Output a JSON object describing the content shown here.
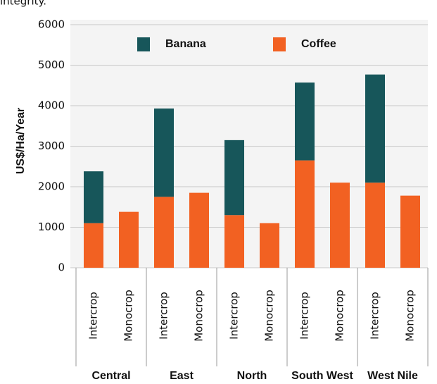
{
  "fragment": "integrity.",
  "chart_data": {
    "type": "stacked_bar",
    "y_label": "US$/Ha/Year",
    "categories": [
      "Intercrop",
      "Monocrop",
      "Intercrop",
      "Monocrop",
      "Intercrop",
      "Monocrop",
      "Intercrop",
      "Monocrop",
      "Intercrop",
      "Monocrop"
    ],
    "groups": [
      "Central",
      "East",
      "North",
      "South West",
      "West Nile"
    ],
    "series": [
      {
        "name": "Coffee",
        "color": "#f26122",
        "values": [
          1100,
          1380,
          1750,
          1850,
          1300,
          1100,
          2650,
          2100,
          2100,
          1780
        ]
      },
      {
        "name": "Banana",
        "color": "#17565a",
        "values": [
          1280,
          null,
          2180,
          null,
          1850,
          null,
          1920,
          null,
          2670,
          null
        ]
      }
    ],
    "legend_order": [
      1,
      0
    ],
    "ylim": [
      0,
      6000
    ],
    "yticks": [
      0,
      1000,
      2000,
      3000,
      4000,
      5000,
      6000
    ],
    "grid": true
  }
}
